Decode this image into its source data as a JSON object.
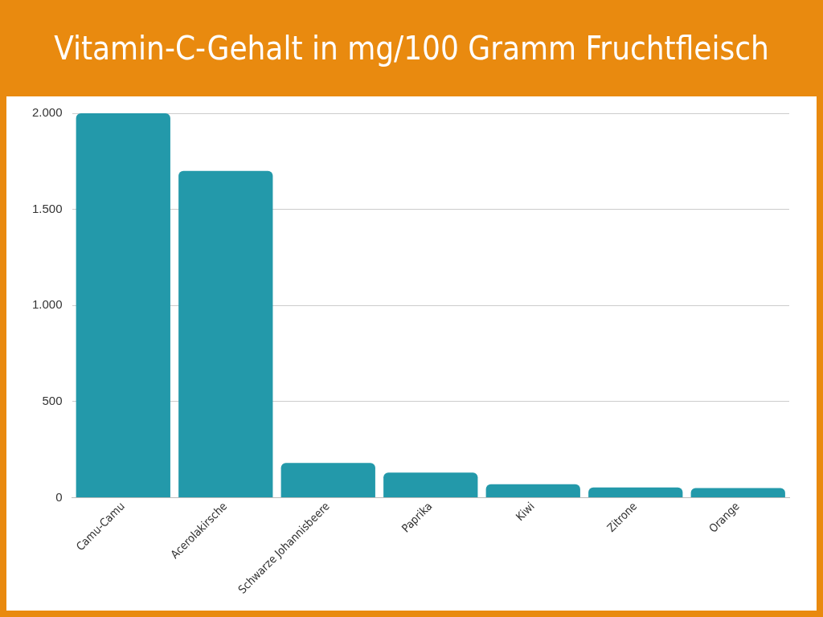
{
  "chart_data": {
    "type": "bar",
    "title": "Vitamin-C-Gehalt in mg/100 Gramm Fruchtfleisch",
    "categories": [
      "Camu-Camu",
      "Acerolakirsche",
      "Schwarze Johannisbeere",
      "Paprika",
      "Kiwi",
      "Zitrone",
      "Orange"
    ],
    "values": [
      2000,
      1700,
      180,
      130,
      70,
      53,
      50
    ],
    "color": "#2399aa",
    "ylim": [
      0,
      2000
    ],
    "yticks": [
      {
        "value": 0,
        "label": "0"
      },
      {
        "value": 500,
        "label": "500"
      },
      {
        "value": 1000,
        "label": "1.000"
      },
      {
        "value": 1500,
        "label": "1.500"
      },
      {
        "value": 2000,
        "label": "2.000"
      }
    ],
    "grid": "y"
  }
}
